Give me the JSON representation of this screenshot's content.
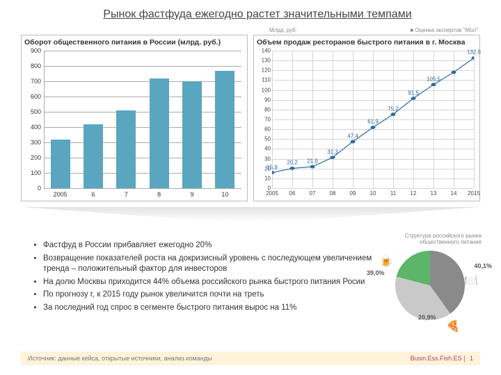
{
  "title": "Рынок фастфуда ежегодно растет значительными темпами",
  "bar_chart": {
    "type": "bar",
    "title": "Оборот общественного питания в России (млрд. руб.)",
    "categories": [
      "2005",
      "6",
      "7",
      "8",
      "9",
      "10"
    ],
    "values": [
      320,
      420,
      510,
      720,
      700,
      770
    ],
    "ylim": [
      0,
      900
    ],
    "ytick_step": 100,
    "bar_color": "#5aa6c0",
    "grid_color": "#aaaaaa",
    "label_fontsize": 9
  },
  "line_chart": {
    "type": "line",
    "title": "Объем продаж ресторанов быстрого питания в г. Москва",
    "unit_label": "Млрд. руб.",
    "legend": "■ Оценка экспертов \"Мол\"",
    "x_labels": [
      "2005",
      "06",
      "07",
      "08",
      "09",
      "10",
      "11",
      "12",
      "13",
      "14",
      "2015"
    ],
    "values": [
      15.9,
      20.2,
      21.9,
      31.3,
      47.4,
      61.9,
      75.2,
      91.5,
      105.5,
      118,
      132.6
    ],
    "shown_value_labels": [
      15.9,
      20.2,
      21.9,
      31.3,
      47.4,
      61.9,
      75.2,
      91.5,
      105.5,
      132.6
    ],
    "ylim": [
      0,
      140
    ],
    "ytick_step": 10,
    "line_color": "#2e6aa0",
    "marker_color": "#2e6aa0",
    "grid_color": "#d5d5d5",
    "label_fontsize": 8
  },
  "bullets": [
    "Фастфуд в России прибавляет ежегодно 20%",
    "Возвращение показателей роста на докризисный уровень с последующем увеличением тренда – положительный фактор для инвесторов",
    "На долю Москвы приходится 44% объема российского рынка быстрого питания Росии",
    "По прогнозу r, к 2015 году рынок увеличится почти на треть",
    "За последний год спрос в сегменте быстрого питания вырос на 11%"
  ],
  "pie_chart": {
    "type": "pie",
    "title": "Структура российского рынка общественного питания",
    "segments": [
      {
        "label": "40,1%",
        "value": 40.1,
        "color": "#8a8a8a",
        "icon": "🍽️"
      },
      {
        "label": "39,0%",
        "value": 39.0,
        "color": "#c9c9c9",
        "icon": "🍺"
      },
      {
        "label": "20,9%",
        "value": 20.9,
        "color": "#5db56a",
        "icon": "🍕"
      }
    ],
    "border_color": "#ffffff"
  },
  "footer": {
    "left": "Источник: данные кейса, открытые источники, анализ команды",
    "right_brand": "Busin.Ess.Fish.ES",
    "separator": " | ",
    "page": "1"
  }
}
